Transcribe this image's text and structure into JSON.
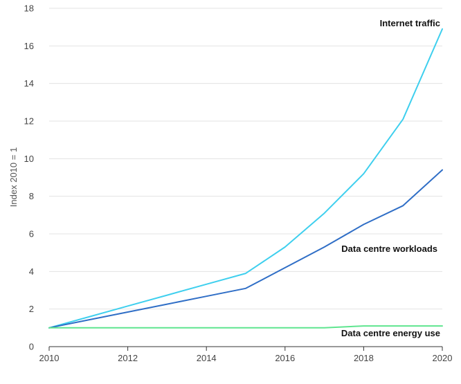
{
  "chart_data": {
    "type": "line",
    "title": "",
    "xlabel": "",
    "ylabel": "Index 2010 = 1",
    "xlim": [
      2010,
      2020
    ],
    "ylim": [
      0,
      18
    ],
    "x_ticks": [
      "2010",
      "2012",
      "2014",
      "2016",
      "2018",
      "2020"
    ],
    "y_ticks": [
      "0",
      "2",
      "4",
      "6",
      "8",
      "10",
      "12",
      "14",
      "16",
      "18"
    ],
    "grid": "horizontal",
    "legend": "none",
    "x": [
      2010,
      2011,
      2012,
      2013,
      2014,
      2015,
      2016,
      2017,
      2018,
      2019,
      2020
    ],
    "series": [
      {
        "name": "Internet traffic",
        "color": "#3ecfee",
        "values": [
          1.0,
          1.58,
          2.16,
          2.74,
          3.32,
          3.9,
          5.3,
          7.1,
          9.2,
          12.1,
          16.9
        ]
      },
      {
        "name": "Data centre workloads",
        "color": "#2f6ec6",
        "values": [
          1.0,
          1.42,
          1.84,
          2.26,
          2.68,
          3.1,
          4.2,
          5.3,
          6.5,
          7.5,
          9.4
        ]
      },
      {
        "name": "Data centre energy use",
        "color": "#5ee58f",
        "values": [
          1.0,
          1.0,
          1.0,
          1.0,
          1.0,
          1.0,
          1.0,
          1.0,
          1.1,
          1.1,
          1.1
        ]
      }
    ]
  }
}
